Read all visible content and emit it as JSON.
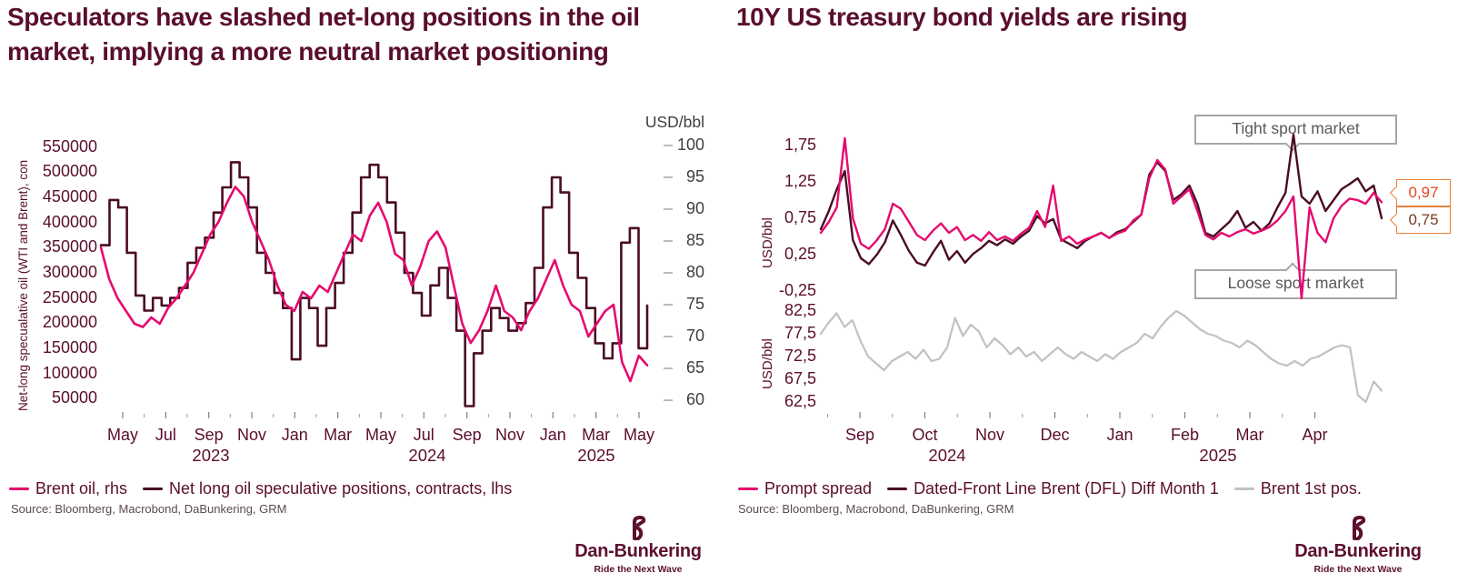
{
  "left_panel": {
    "source": "Source: Bloomberg, Macrobond, DaBunkering, GRM"
  },
  "right_panel": {
    "source": "Source: Bloomberg, Macrobond, DaBunkering, GRM"
  },
  "logo": {
    "name": "Dan-Bunkering",
    "tagline": "Ride the Next Wave",
    "color": "#5d0f2f"
  },
  "colors": {
    "pink": "#e50a6e",
    "dark_maroon": "#4a0c24",
    "gray_line": "#c2c1c1",
    "maroon_text": "#5a0e2d",
    "axis_gray": "#3f3f3f",
    "annotation_gray": "#595959",
    "callout_border": "#e8823c"
  },
  "chart_data": [
    {
      "type": "line",
      "title": "Speculators have slashed net-long positions in the oil market, implying a more neutral market positioning",
      "x_range": [
        "Apr 2023",
        "May 2025"
      ],
      "x_ticks": [
        "May",
        "Jul",
        "Sep",
        "Nov",
        "Jan",
        "Mar",
        "May",
        "Jul",
        "Sep",
        "Nov",
        "Jan",
        "Mar",
        "May"
      ],
      "x_years": [
        "2023",
        "2024",
        "2025"
      ],
      "axes": {
        "left": {
          "label": "Net-long specualative oil (WTI and Brent), con",
          "ticks": [
            "550000",
            "500000",
            "450000",
            "400000",
            "350000",
            "300000",
            "250000",
            "200000",
            "150000",
            "100000",
            "50000"
          ],
          "range": [
            25000,
            575000
          ]
        },
        "right": {
          "label": "USD/bbl",
          "ticks": [
            "100",
            "95",
            "90",
            "85",
            "80",
            "75",
            "70",
            "65",
            "60"
          ],
          "range": [
            58.3,
            101.7
          ]
        }
      },
      "series": [
        {
          "name": "Net long oil speculative positions, contracts, lhs",
          "axis": "left",
          "color": "#4a0c24",
          "style": "step",
          "width": 2.6,
          "values": [
            355000,
            445000,
            430000,
            340000,
            255000,
            225000,
            250000,
            235000,
            250000,
            270000,
            320000,
            350000,
            370000,
            420000,
            470000,
            520000,
            490000,
            430000,
            340000,
            300000,
            260000,
            230000,
            128000,
            250000,
            230000,
            155000,
            230000,
            280000,
            340000,
            420000,
            490000,
            515000,
            490000,
            440000,
            380000,
            300000,
            260000,
            215000,
            275000,
            310000,
            250000,
            185000,
            35000,
            140000,
            185000,
            230000,
            210000,
            185000,
            200000,
            240000,
            310000,
            430000,
            490000,
            460000,
            340000,
            290000,
            230000,
            160000,
            130000,
            160000,
            360000,
            389000,
            150000,
            235000
          ]
        },
        {
          "name": "Brent oil, rhs",
          "axis": "right",
          "color": "#e50a6e",
          "style": "linear",
          "width": 2.6,
          "values": [
            84,
            79,
            76,
            74,
            72,
            71.5,
            73,
            72,
            74.5,
            76,
            78,
            80,
            83,
            86,
            88,
            91,
            93.5,
            92,
            88,
            85,
            82,
            78,
            75,
            74,
            77,
            76,
            78,
            77,
            80,
            83,
            86,
            85,
            89,
            91,
            88,
            83,
            82,
            78,
            81,
            85,
            86.5,
            84,
            78,
            72,
            69,
            71,
            74,
            78,
            74,
            73,
            71,
            74,
            76,
            79,
            82,
            78,
            75,
            74,
            70,
            72,
            74,
            75,
            66,
            63,
            67,
            65.5
          ]
        }
      ],
      "legend": [
        {
          "label": "Brent oil, rhs",
          "color": "#e50a6e"
        },
        {
          "label": "Net long oil speculative positions, contracts, lhs",
          "color": "#4a0c24"
        }
      ]
    },
    {
      "type": "line",
      "title": "10Y US treasury bond yields are rising",
      "panel": "right-top",
      "x_range": [
        "Aug 2024",
        "Apr 2025"
      ],
      "x_ticks": [
        "Sep",
        "Oct",
        "Nov",
        "Dec",
        "Jan",
        "Feb",
        "Mar",
        "Apr"
      ],
      "x_years": [
        "2024",
        "2025"
      ],
      "axes": {
        "left": {
          "label": "USD/bbl",
          "ticks": [
            "1,75",
            "1,25",
            "0,75",
            "0,25",
            "-0,25"
          ],
          "range": [
            -0.3125,
            2.0
          ]
        }
      },
      "series": [
        {
          "name": "Dated-Front Line Brent (DFL) Diff Month 1",
          "axis": "left",
          "color": "#4a0c24",
          "style": "linear",
          "width": 2.4,
          "values": [
            0.6,
            0.85,
            1.15,
            1.4,
            0.45,
            0.2,
            0.12,
            0.25,
            0.42,
            0.72,
            0.52,
            0.3,
            0.14,
            0.1,
            0.28,
            0.44,
            0.18,
            0.3,
            0.14,
            0.26,
            0.34,
            0.44,
            0.38,
            0.46,
            0.4,
            0.5,
            0.58,
            0.78,
            0.68,
            0.74,
            0.46,
            0.4,
            0.34,
            0.44,
            0.5,
            0.55,
            0.48,
            0.56,
            0.6,
            0.7,
            0.8,
            1.35,
            1.52,
            1.4,
            1.0,
            1.08,
            1.2,
            0.95,
            0.55,
            0.5,
            0.6,
            0.7,
            0.85,
            0.62,
            0.7,
            0.58,
            0.68,
            0.9,
            1.1,
            1.9,
            1.05,
            0.95,
            1.12,
            0.85,
            1.0,
            1.15,
            1.22,
            1.3,
            1.12,
            1.2,
            0.75
          ]
        },
        {
          "name": "Prompt spread",
          "axis": "left",
          "color": "#e50a6e",
          "style": "linear",
          "width": 2.4,
          "values": [
            0.55,
            0.7,
            0.9,
            1.85,
            0.75,
            0.4,
            0.33,
            0.45,
            0.6,
            0.95,
            0.88,
            0.7,
            0.52,
            0.45,
            0.58,
            0.68,
            0.55,
            0.63,
            0.45,
            0.52,
            0.44,
            0.56,
            0.45,
            0.5,
            0.44,
            0.54,
            0.62,
            0.85,
            0.63,
            1.2,
            0.44,
            0.5,
            0.4,
            0.46,
            0.5,
            0.55,
            0.48,
            0.54,
            0.58,
            0.72,
            0.8,
            1.3,
            1.55,
            1.42,
            0.95,
            1.05,
            1.15,
            0.85,
            0.52,
            0.46,
            0.55,
            0.5,
            0.56,
            0.6,
            0.54,
            0.58,
            0.63,
            0.72,
            0.85,
            1.05,
            -0.35,
            0.9,
            0.55,
            0.42,
            0.75,
            0.92,
            1.02,
            1.0,
            0.95,
            1.1,
            0.97
          ]
        }
      ],
      "annotations": {
        "tight": "Tight sport market",
        "loose": "Loose sport market"
      },
      "end_labels": [
        {
          "text": "0,97",
          "color": "#e2471d"
        },
        {
          "text": "0,75",
          "color": "#7d3a1e"
        }
      ],
      "legend": [
        {
          "label": "Prompt spread",
          "color": "#e50a6e"
        },
        {
          "label": "Dated-Front Line Brent (DFL) Diff Month 1",
          "color": "#4a0c24"
        },
        {
          "label": "Brent 1st pos.",
          "color": "#c2c1c1"
        }
      ]
    },
    {
      "type": "line",
      "panel": "right-bottom",
      "axes": {
        "left": {
          "label": "USD/bbl",
          "ticks": [
            "82,5",
            "77,5",
            "72,5",
            "67,5",
            "62,5"
          ],
          "range": [
            60.5,
            84.5
          ]
        }
      },
      "series": [
        {
          "name": "Brent 1st pos.",
          "axis": "left",
          "color": "#c2c1c1",
          "style": "linear",
          "width": 2.2,
          "values": [
            77.5,
            80.0,
            82.0,
            79.0,
            80.5,
            76.0,
            72.5,
            71.0,
            69.5,
            71.5,
            72.5,
            73.5,
            72.0,
            74.0,
            71.5,
            72.0,
            74.5,
            81.0,
            77.0,
            79.5,
            78.0,
            74.5,
            76.5,
            75.0,
            73.0,
            74.5,
            72.5,
            73.5,
            71.5,
            73.0,
            74.5,
            73.0,
            72.0,
            73.5,
            72.5,
            71.5,
            73.0,
            72.0,
            73.5,
            74.5,
            75.5,
            77.5,
            76.5,
            79.0,
            81.0,
            82.5,
            81.5,
            80.0,
            78.5,
            77.5,
            77.0,
            76.0,
            75.5,
            74.5,
            76.0,
            75.0,
            73.5,
            72.0,
            71.0,
            70.5,
            71.5,
            70.5,
            72.0,
            72.5,
            73.5,
            74.5,
            75.0,
            74.5,
            64.0,
            62.5,
            67.0,
            65.0
          ]
        }
      ]
    }
  ]
}
